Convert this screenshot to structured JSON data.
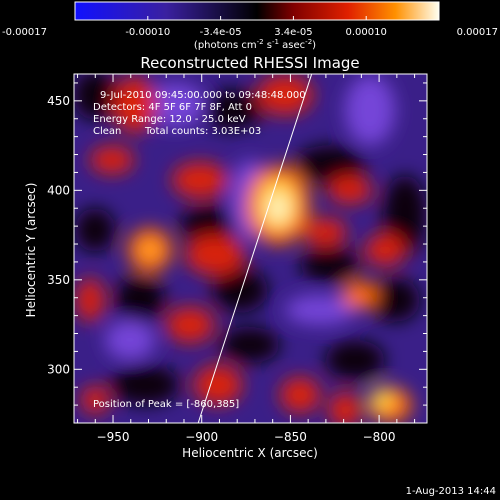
{
  "colorbar": {
    "ticks": [
      "-0.00017",
      "-0.00010",
      "-3.4e-05",
      "3.4e-05",
      "0.00010",
      "0.00017"
    ],
    "units_base": "(photons cm",
    "units_exp1": "-2",
    "units_mid1": " s",
    "units_exp2": "-1",
    "units_mid2": " asec",
    "units_exp3": "-2",
    "units_end": ")"
  },
  "plot": {
    "title": "Reconstructed RHESSI Image",
    "xlabel": "Heliocentric X (arcsec)",
    "ylabel": "Heliocentric Y (arcsec)",
    "x_range": [
      -972,
      -773
    ],
    "y_range": [
      270,
      465
    ],
    "x_ticks": [
      -950,
      -900,
      -850,
      -800
    ],
    "y_ticks": [
      300,
      350,
      400,
      450
    ],
    "x_tick_labels": [
      "−950",
      "−900",
      "−850",
      "−800"
    ],
    "y_tick_labels": [
      "300",
      "350",
      "400",
      "450"
    ],
    "limb_line": {
      "from": [
        -902,
        270
      ],
      "to": [
        -838,
        465
      ]
    }
  },
  "annotations": {
    "time_range": "9-Jul-2010 09:45:00.000 to 09:48:48.000",
    "detectors": "Detectors: 4F 5F 6F 7F 8F, Att 0",
    "energy": "Energy Range: 12.0 - 25.0 keV",
    "clean": "Clean",
    "total_counts": "Total counts: 3.03E+03",
    "peak": "Position of Peak = [-860,385]"
  },
  "footer": {
    "date": "1-Aug-2013 14:44"
  },
  "colors": {
    "deep_purple": "#240a4a",
    "purple": "#4d2ba0",
    "violet": "#7545d8",
    "red": "#d82010",
    "orange": "#ff6a00",
    "yellow": "#ffd040",
    "white_hot": "#fff8c8"
  }
}
